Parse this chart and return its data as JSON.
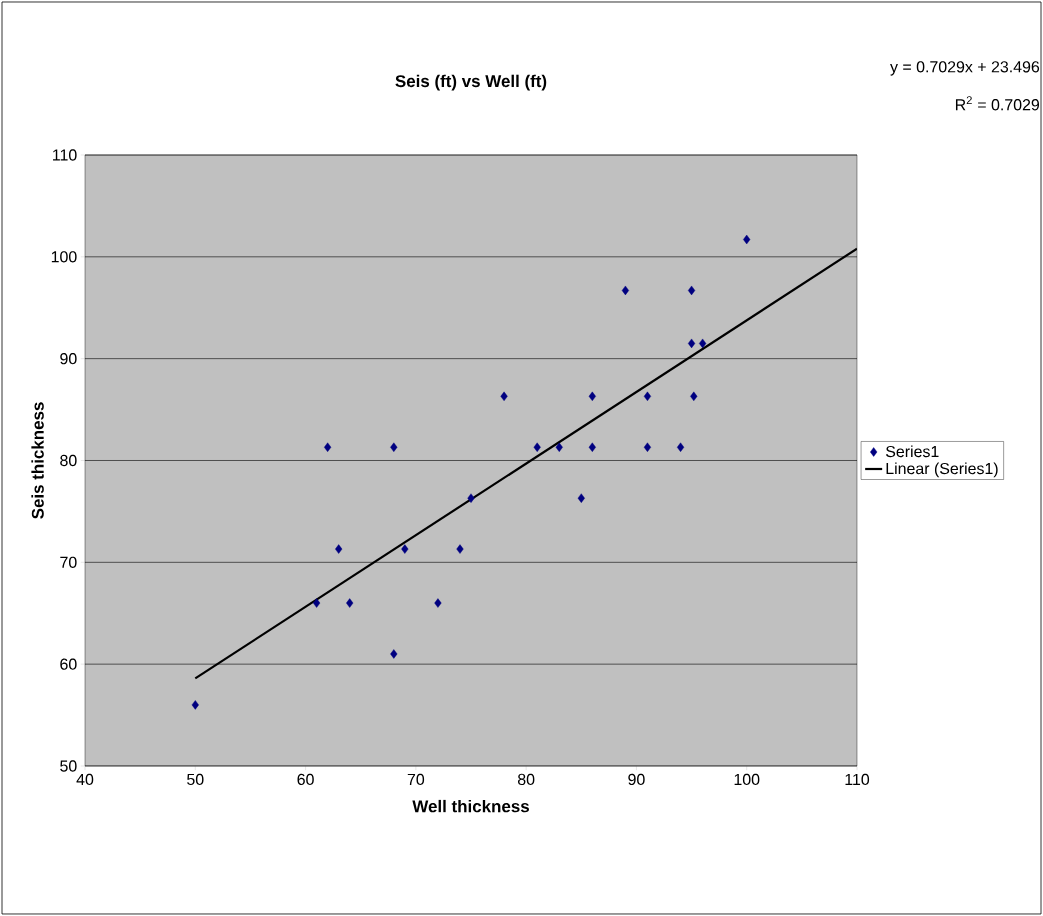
{
  "chart_data": {
    "type": "scatter",
    "title": "Seis (ft) vs Well (ft)",
    "xlabel": "Well thickness",
    "ylabel": "Seis thickness",
    "annotations": [
      "y = 0.7029x + 23.496",
      "R$^{2}$ = 0.7029"
    ],
    "xlim": [
      40,
      110
    ],
    "xticks": [
      40,
      50,
      60,
      70,
      80,
      90,
      100,
      110
    ],
    "ylim": [
      50,
      110
    ],
    "yticks": [
      50,
      60,
      70,
      80,
      90,
      100,
      110
    ],
    "grid": "y",
    "legend": "right",
    "series": [
      {
        "name": "Series1",
        "marker": "diamond",
        "color": "#000080",
        "x": [
          50,
          62,
          63,
          61,
          64,
          68,
          68,
          69,
          72,
          74,
          75,
          78,
          81,
          83,
          85,
          86,
          86,
          89,
          91,
          91,
          94,
          95,
          95,
          95.2,
          96,
          100
        ],
        "values": [
          56,
          81.3,
          71.3,
          66,
          66,
          81.3,
          61,
          71.3,
          66,
          71.3,
          76.3,
          86.3,
          81.3,
          81.3,
          76.3,
          86.3,
          81.3,
          96.7,
          86.3,
          81.3,
          81.3,
          96.7,
          91.5,
          86.3,
          91.5,
          101.7
        ]
      },
      {
        "name": "Linear (Series1)",
        "type": "line",
        "color": "#000000",
        "x": [
          50,
          110
        ],
        "values": [
          58.6,
          100.8
        ]
      }
    ]
  }
}
